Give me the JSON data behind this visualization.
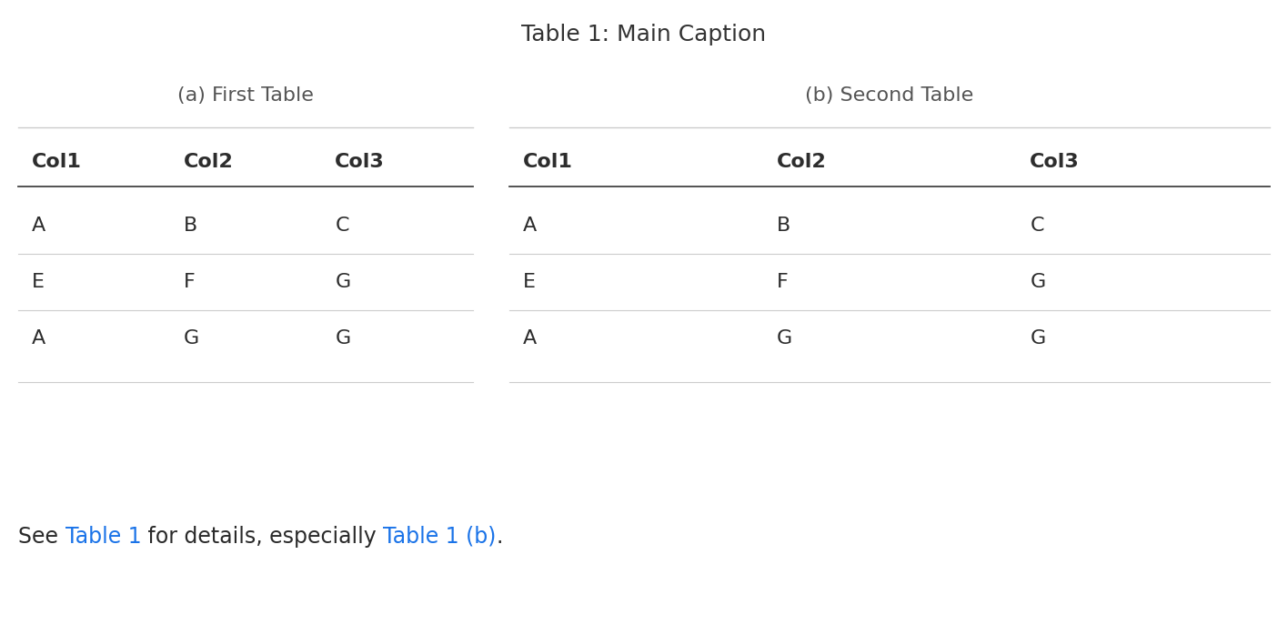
{
  "main_caption": "Table 1: Main Caption",
  "table_a_title": "(a) First Table",
  "table_b_title": "(b) Second Table",
  "columns": [
    "Col1",
    "Col2",
    "Col3"
  ],
  "table_a_data": [
    [
      "A",
      "B",
      "C"
    ],
    [
      "E",
      "F",
      "G"
    ],
    [
      "A",
      "G",
      "G"
    ]
  ],
  "table_b_data": [
    [
      "A",
      "B",
      "C"
    ],
    [
      "E",
      "F",
      "G"
    ],
    [
      "A",
      "G",
      "G"
    ]
  ],
  "footer_text_parts": [
    {
      "text": "See ",
      "color": "#2a2a2a",
      "link": false
    },
    {
      "text": "Table 1",
      "color": "#1a73e8",
      "link": true
    },
    {
      "text": " for details, especially ",
      "color": "#2a2a2a",
      "link": false
    },
    {
      "text": "Table 1 (b)",
      "color": "#1a73e8",
      "link": true
    },
    {
      "text": ".",
      "color": "#2a2a2a",
      "link": false
    }
  ],
  "bg_color": "#ffffff",
  "text_color": "#2d2d2d",
  "line_color": "#cccccc",
  "header_line_color": "#444444",
  "title_color": "#333333",
  "subtitle_color": "#555555",
  "link_color": "#1a73e8",
  "main_caption_fontsize": 18,
  "subtitle_fontsize": 16,
  "header_fontsize": 16,
  "cell_fontsize": 16,
  "footer_fontsize": 17
}
